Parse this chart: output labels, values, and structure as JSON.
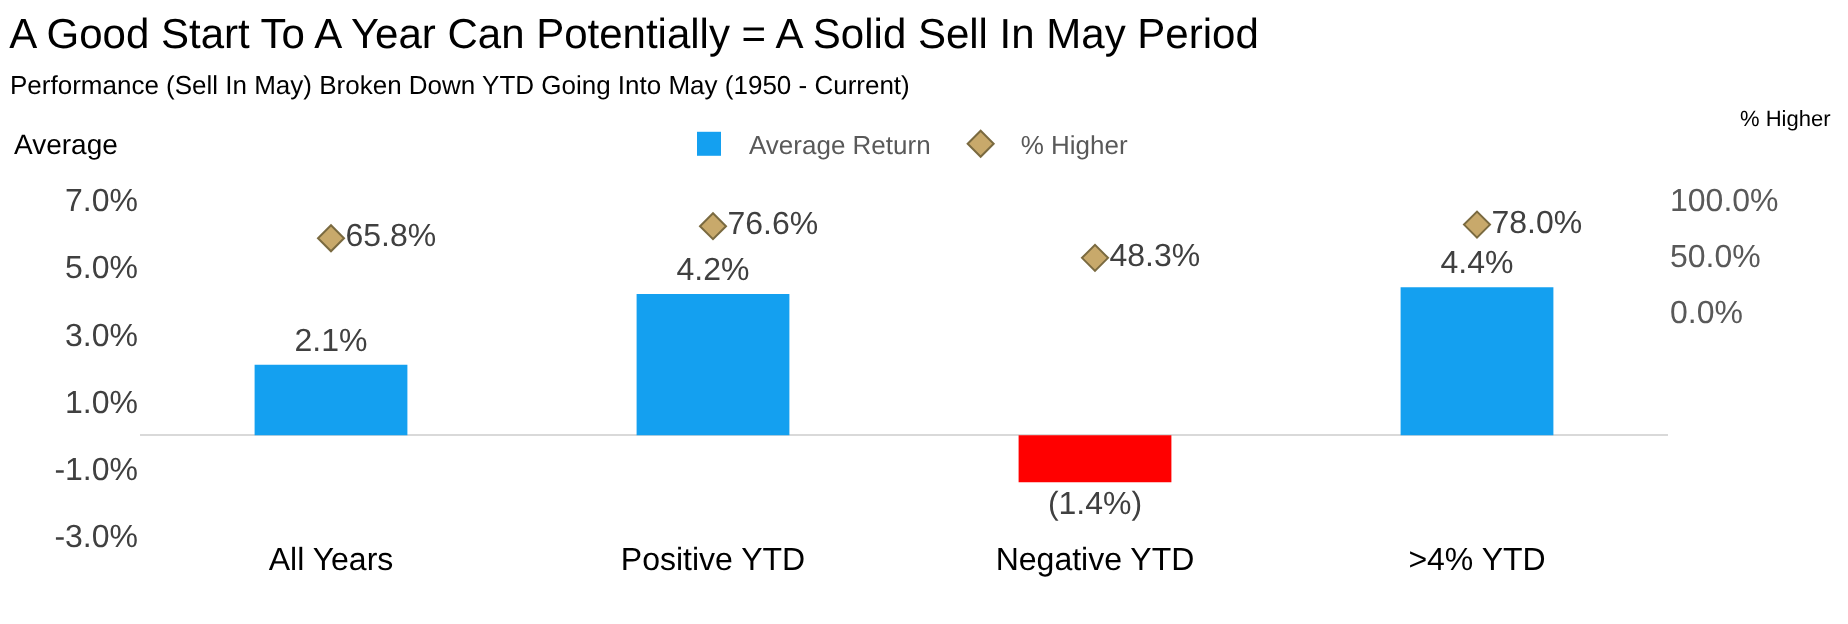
{
  "chart_data": {
    "type": "bar",
    "title": "A Good Start To A Year Can Potentially = A Solid Sell In May Period",
    "subtitle": "Performance (Sell In May) Broken Down YTD Going Into May (1950 - Current)",
    "ylabel": "Average",
    "y2label": "% Higher",
    "categories": [
      "All Years",
      "Positive YTD",
      "Negative YTD",
      ">4% YTD"
    ],
    "series": [
      {
        "name": "Average Return",
        "colors": [
          "#14a0f0",
          "#14a0f0",
          "#ff0000",
          "#14a0f0"
        ],
        "values": [
          2.1,
          4.2,
          -1.4,
          4.4
        ],
        "value_labels": [
          "2.1%",
          "4.2%",
          "(1.4%)",
          "4.4%"
        ]
      },
      {
        "name": "% Higher",
        "type": "scatter",
        "axis": "y2",
        "color": "#c8a96b",
        "marker": "diamond",
        "values": [
          65.8,
          76.6,
          48.3,
          78.0
        ],
        "value_labels": [
          "65.8%",
          "76.6%",
          "48.3%",
          "78.0%"
        ]
      }
    ],
    "ylim": [
      -3,
      7
    ],
    "yticks": [
      {
        "value": 7,
        "label": "7.0%"
      },
      {
        "value": 5,
        "label": "5.0%"
      },
      {
        "value": 3,
        "label": "3.0%"
      },
      {
        "value": 1,
        "label": "1.0%"
      },
      {
        "value": -1,
        "label": "-1.0%"
      },
      {
        "value": -3,
        "label": "-3.0%"
      }
    ],
    "y2lim": [
      0,
      100
    ],
    "y2ticks": [
      {
        "value": 100,
        "label": "100.0%"
      },
      {
        "value": 50,
        "label": "50.0%"
      },
      {
        "value": 0,
        "label": "0.0%"
      }
    ],
    "grid": false,
    "legend": "top"
  }
}
